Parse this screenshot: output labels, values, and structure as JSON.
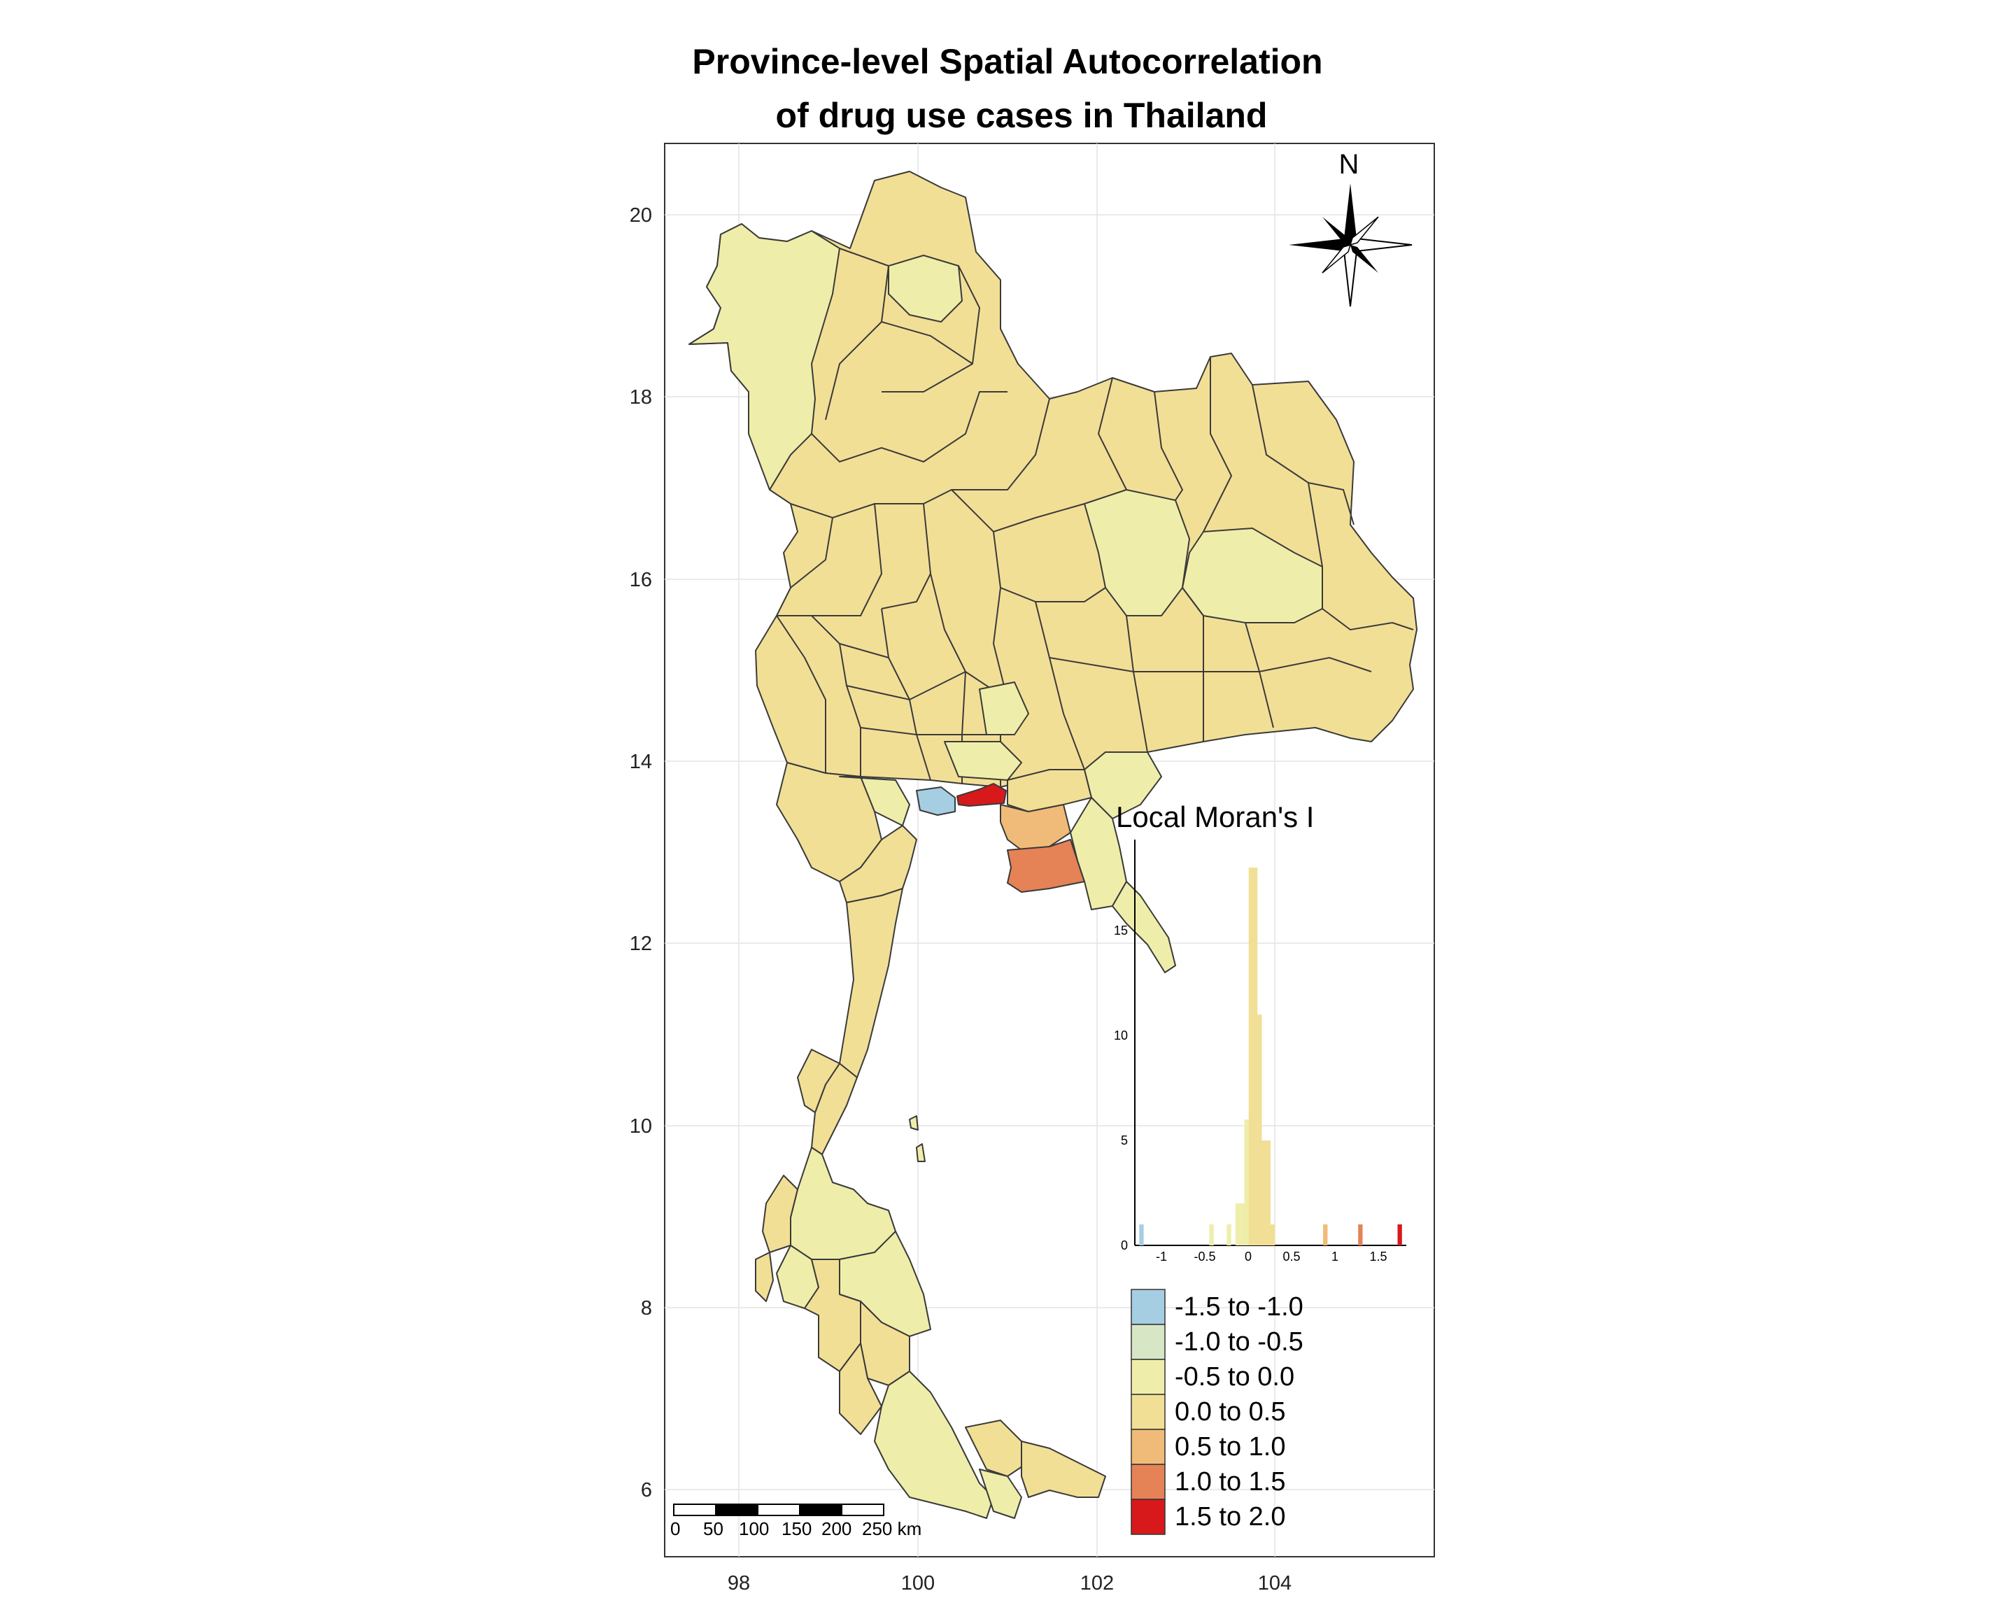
{
  "title": {
    "line1": "Province-level Spatial Autocorrelation",
    "line2": "of drug use cases in Thailand"
  },
  "axes": {
    "x_ticks": [
      "98",
      "100",
      "102",
      "104"
    ],
    "y_ticks": [
      "20",
      "18",
      "16",
      "14",
      "12",
      "10",
      "8",
      "6"
    ]
  },
  "north_arrow": {
    "label": "N",
    "icon": "compass-rose-icon"
  },
  "scale_bar": {
    "labels": [
      "0",
      "50",
      "100",
      "150",
      "200",
      "250 km"
    ]
  },
  "colors": {
    "c1": "#a6cee3",
    "c2": "#d7e6c4",
    "c3": "#eeeeaa",
    "c4": "#f2df96",
    "c5": "#f0bb78",
    "c6": "#e58256",
    "c7": "#d7191c"
  },
  "histogram": {
    "title": "Local Moran's I",
    "y_ticks": [
      "0",
      "5",
      "10",
      "15"
    ],
    "x_ticks": [
      "-1",
      "-0.5",
      "0",
      "0.5",
      "1",
      "1.5"
    ]
  },
  "chart_data": {
    "type": "bar",
    "title": "Local Moran's I",
    "xlim": [
      -1.3,
      1.8
    ],
    "ylim": [
      0,
      18
    ],
    "bin_width": 0.05,
    "bins": [
      {
        "x": -1.25,
        "count": 1,
        "color": "c1"
      },
      {
        "x": -0.45,
        "count": 1,
        "color": "c3"
      },
      {
        "x": -0.25,
        "count": 1,
        "color": "c3"
      },
      {
        "x": -0.15,
        "count": 2,
        "color": "c3"
      },
      {
        "x": -0.1,
        "count": 2,
        "color": "c3"
      },
      {
        "x": -0.05,
        "count": 6,
        "color": "c3"
      },
      {
        "x": 0.0,
        "count": 18,
        "color": "c4"
      },
      {
        "x": 0.05,
        "count": 18,
        "color": "c4"
      },
      {
        "x": 0.1,
        "count": 11,
        "color": "c4"
      },
      {
        "x": 0.15,
        "count": 5,
        "color": "c4"
      },
      {
        "x": 0.2,
        "count": 5,
        "color": "c4"
      },
      {
        "x": 0.25,
        "count": 1,
        "color": "c4"
      },
      {
        "x": 0.85,
        "count": 1,
        "color": "c5"
      },
      {
        "x": 1.25,
        "count": 1,
        "color": "c6"
      },
      {
        "x": 1.7,
        "count": 1,
        "color": "c7"
      }
    ]
  },
  "legend": [
    {
      "label": "-1.5 to -1.0",
      "color": "c1"
    },
    {
      "label": "-1.0 to -0.5",
      "color": "c2"
    },
    {
      "label": "-0.5 to 0.0",
      "color": "c3"
    },
    {
      "label": "0.0 to 0.5",
      "color": "c4"
    },
    {
      "label": "0.5 to 1.0",
      "color": "c5"
    },
    {
      "label": "1.0 to 1.5",
      "color": "c6"
    },
    {
      "label": "1.5 to 2.0",
      "color": "c7"
    }
  ]
}
